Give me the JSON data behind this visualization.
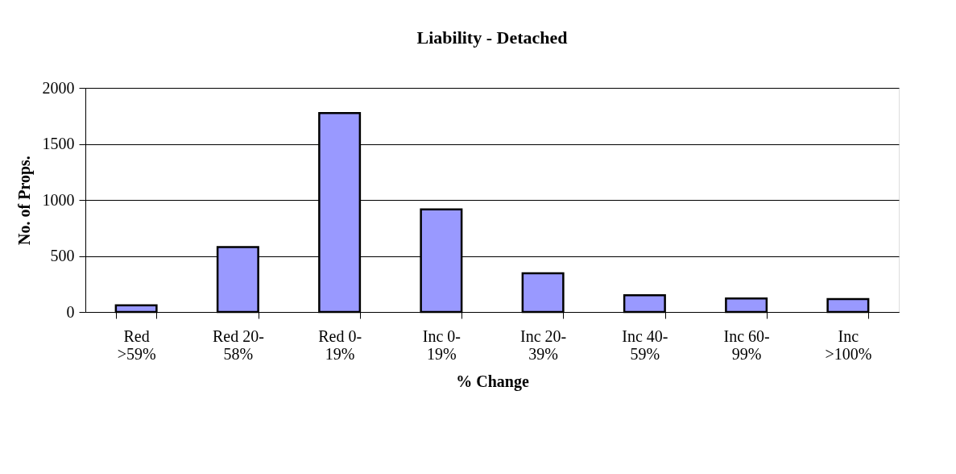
{
  "chart_data": {
    "type": "bar",
    "title": "Liability - Detached",
    "xlabel": "% Change",
    "ylabel": "No. of Props.",
    "categories": [
      "Red >59%",
      "Red 20-58%",
      "Red 0-19%",
      "Inc 0-19%",
      "Inc 20-39%",
      "Inc 40-59%",
      "Inc 60-99%",
      "Inc >100%"
    ],
    "values": [
      60,
      580,
      1775,
      915,
      345,
      150,
      120,
      115
    ],
    "color": "#9999ff",
    "ylim": [
      0,
      2000
    ],
    "yticks": [
      0,
      500,
      1000,
      1500,
      2000
    ],
    "grid": "y"
  }
}
